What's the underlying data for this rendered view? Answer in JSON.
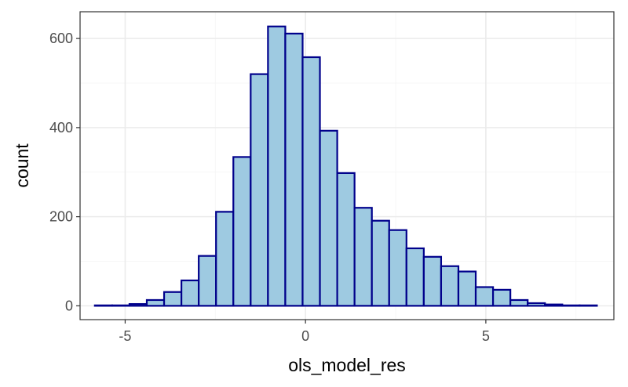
{
  "chart_data": {
    "type": "bar",
    "subtype": "histogram",
    "title": "",
    "xlabel": "ols_model_res",
    "ylabel": "count",
    "xlim": [
      -6.25,
      8.55
    ],
    "ylim": [
      -31,
      660
    ],
    "x_ticks": [
      -5,
      0,
      5
    ],
    "x_tick_labels": [
      "-5",
      "0",
      "5"
    ],
    "y_ticks": [
      0,
      200,
      400,
      600
    ],
    "y_tick_labels": [
      "0",
      "200",
      "400",
      "600"
    ],
    "grid": true,
    "legend": "none",
    "bin_width": 0.48,
    "bin_starts": [
      -5.84,
      -5.36,
      -4.88,
      -4.4,
      -3.92,
      -3.44,
      -2.96,
      -2.48,
      -2.0,
      -1.52,
      -1.04,
      -0.56,
      -0.08,
      0.4,
      0.88,
      1.36,
      1.84,
      2.32,
      2.8,
      3.28,
      3.76,
      4.24,
      4.72,
      5.2,
      5.68,
      6.16,
      6.64,
      7.12,
      7.6
    ],
    "counts": [
      1,
      1,
      4,
      13,
      31,
      57,
      112,
      211,
      334,
      520,
      627,
      611,
      558,
      393,
      298,
      220,
      191,
      170,
      129,
      110,
      89,
      77,
      42,
      36,
      13,
      6,
      3,
      1,
      1
    ],
    "colors": {
      "bar_fill": "#9ecae1",
      "bar_outline": "#00008b",
      "panel_border": "#333333",
      "grid_major": "#ebebeb",
      "grid_minor": "#f5f5f5"
    }
  }
}
